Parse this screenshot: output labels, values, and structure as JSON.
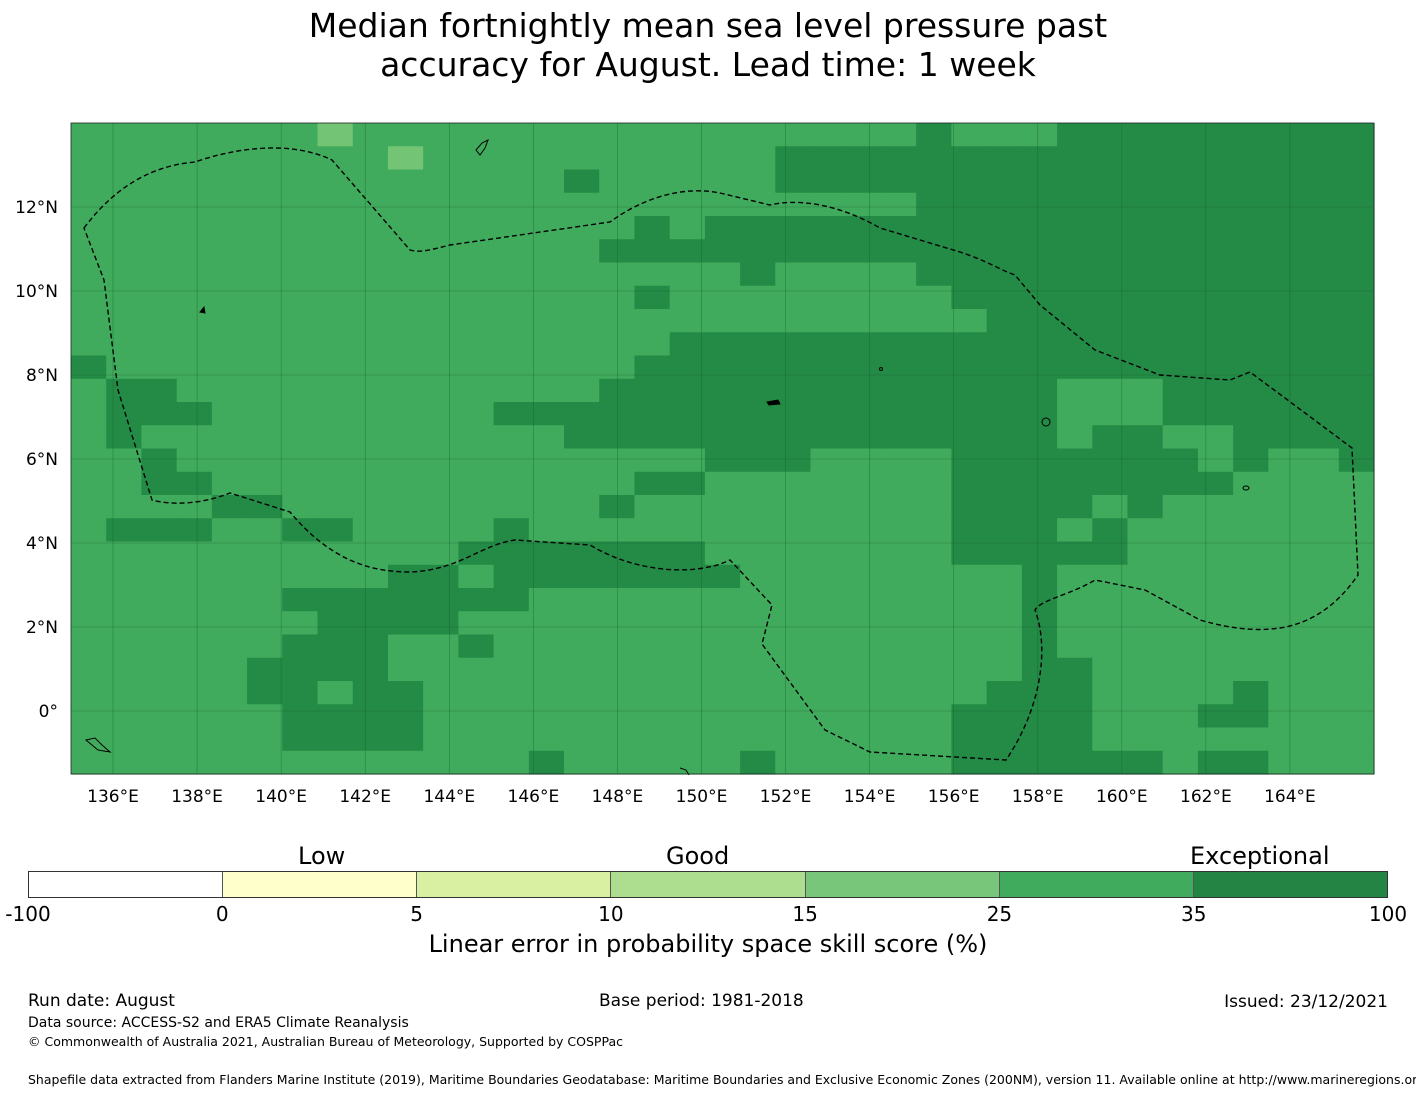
{
  "title": {
    "line1": "Median fortnightly mean sea level pressure past",
    "line2": "accuracy for August. Lead time: 1 week"
  },
  "map": {
    "lon_range": [
      135,
      166
    ],
    "lat_range": [
      -1.5,
      14
    ],
    "x_ticks": [
      "136°E",
      "138°E",
      "140°E",
      "142°E",
      "144°E",
      "146°E",
      "148°E",
      "150°E",
      "152°E",
      "154°E",
      "156°E",
      "158°E",
      "160°E",
      "162°E",
      "164°E"
    ],
    "y_ticks": [
      "12°N",
      "10°N",
      "8°N",
      "6°N",
      "4°N",
      "2°N",
      "0°"
    ],
    "grid": true,
    "cell_colors": {
      "E": "#238b45",
      "G": "#41ab5d",
      "M": "#74c476"
    }
  },
  "colorbar": {
    "categories": [
      "Low",
      "Good",
      "Exceptional"
    ],
    "ticks": [
      "-100",
      "0",
      "5",
      "10",
      "15",
      "25",
      "35",
      "100"
    ],
    "colors": [
      "#ffffff",
      "#ffffcc",
      "#d9f0a3",
      "#addd8e",
      "#78c679",
      "#41ab5d",
      "#238443"
    ],
    "label": "Linear error in probability space skill score (%)"
  },
  "footer": {
    "run_date": "Run date: August",
    "base_period": "Base period: 1981-2018",
    "issued": "Issued: 23/12/2021",
    "data_source": "Data source: ACCESS-S2 and ERA5 Climate Reanalysis",
    "copyright": "© Commonwealth of Australia 2021, Australian Bureau of Meteorology, Supported by COSPPac",
    "shapefile": "Shapefile data extracted from Flanders Marine Institute (2019), Maritime Boundaries Geodatabase: Maritime Boundaries and Exclusive Economic Zones (200NM), version 11. Available online at http://www.marineregions.org/."
  }
}
